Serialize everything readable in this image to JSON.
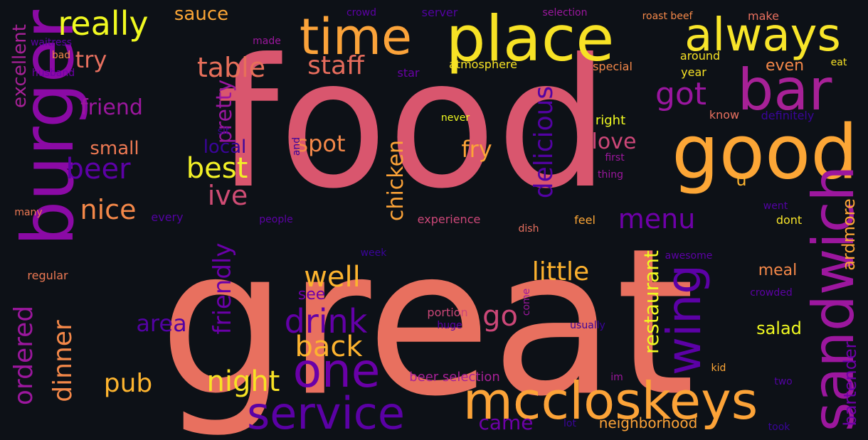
{
  "words": [
    {
      "text": "food",
      "color": "#d9566e",
      "rotate": false
    },
    {
      "text": "great",
      "color": "#e8705f",
      "rotate": false
    },
    {
      "text": "place",
      "color": "#f7e225",
      "rotate": false
    },
    {
      "text": "time",
      "color": "#fba33a",
      "rotate": false
    },
    {
      "text": "always",
      "color": "#f8e52a",
      "rotate": false
    },
    {
      "text": "bar",
      "color": "#a72197",
      "rotate": false
    },
    {
      "text": "good",
      "color": "#fca636",
      "rotate": false
    },
    {
      "text": "burger",
      "color": "#8b0aa5",
      "rotate": true
    },
    {
      "text": "sandwich",
      "color": "#9c179e",
      "rotate": true
    },
    {
      "text": "mccloskeys",
      "color": "#fca338",
      "rotate": false
    },
    {
      "text": "service",
      "color": "#5b01a5",
      "rotate": false
    },
    {
      "text": "one",
      "color": "#6a00a8",
      "rotate": false
    },
    {
      "text": "really",
      "color": "#f0f921",
      "rotate": false
    },
    {
      "text": "table",
      "color": "#e76f5a",
      "rotate": false
    },
    {
      "text": "staff",
      "color": "#e66c5c",
      "rotate": false
    },
    {
      "text": "wing",
      "color": "#5c01a6",
      "rotate": true
    },
    {
      "text": "got",
      "color": "#9a169f",
      "rotate": false
    },
    {
      "text": "beer",
      "color": "#5d01a6",
      "rotate": false
    },
    {
      "text": "best",
      "color": "#f2f027",
      "rotate": false
    },
    {
      "text": "ive",
      "color": "#cf4c74",
      "rotate": false
    },
    {
      "text": "nice",
      "color": "#f48849",
      "rotate": false
    },
    {
      "text": "delicious",
      "color": "#5302a3",
      "rotate": true
    },
    {
      "text": "menu",
      "color": "#6e00a8",
      "rotate": false
    },
    {
      "text": "well",
      "color": "#fdb42f",
      "rotate": false
    },
    {
      "text": "little",
      "color": "#fcb12e",
      "rotate": false
    },
    {
      "text": "drink",
      "color": "#6300a7",
      "rotate": false
    },
    {
      "text": "go",
      "color": "#cc4778",
      "rotate": false
    },
    {
      "text": "back",
      "color": "#fdb32f",
      "rotate": false
    },
    {
      "text": "night",
      "color": "#f7e225",
      "rotate": false
    },
    {
      "text": "pub",
      "color": "#fdb42f",
      "rotate": false
    },
    {
      "text": "dinner",
      "color": "#f48849",
      "rotate": true
    },
    {
      "text": "ordered",
      "color": "#9c179e",
      "rotate": true
    },
    {
      "text": "friendly",
      "color": "#6a00a8",
      "rotate": true
    },
    {
      "text": "chicken",
      "color": "#fca338",
      "rotate": true
    },
    {
      "text": "restaurant",
      "color": "#f0f921",
      "rotate": true
    },
    {
      "text": "bartender",
      "color": "#6e00a8",
      "rotate": true
    },
    {
      "text": "ardmore",
      "color": "#fca636",
      "rotate": true
    },
    {
      "text": "love",
      "color": "#cc4778",
      "rotate": false
    },
    {
      "text": "fry",
      "color": "#fca338",
      "rotate": false
    },
    {
      "text": "pretty",
      "color": "#9a169f",
      "rotate": true
    },
    {
      "text": "spot",
      "color": "#f48849",
      "rotate": false
    },
    {
      "text": "friend",
      "color": "#9c179e",
      "rotate": false
    },
    {
      "text": "area",
      "color": "#5302a3",
      "rotate": false
    },
    {
      "text": "excellent",
      "color": "#a72197",
      "rotate": true
    },
    {
      "text": "small",
      "color": "#ed7953",
      "rotate": false
    },
    {
      "text": "local",
      "color": "#3a049a",
      "rotate": false
    },
    {
      "text": "try",
      "color": "#e8705f",
      "rotate": false
    },
    {
      "text": "sauce",
      "color": "#fca636",
      "rotate": false
    },
    {
      "text": "came",
      "color": "#6e00a8",
      "rotate": false
    },
    {
      "text": "meal",
      "color": "#f48849",
      "rotate": false
    },
    {
      "text": "salad",
      "color": "#f0f921",
      "rotate": false
    },
    {
      "text": "see",
      "color": "#6e00a8",
      "rotate": false
    },
    {
      "text": "even",
      "color": "#f48849",
      "rotate": false
    },
    {
      "text": "u",
      "color": "#fdb42f",
      "rotate": false
    },
    {
      "text": "neighborhood",
      "color": "#fca338",
      "rotate": false
    },
    {
      "text": "beer selection",
      "color": "#a72197",
      "rotate": false
    },
    {
      "text": "experience",
      "color": "#cc4778",
      "rotate": false
    },
    {
      "text": "people",
      "color": "#5d01a6",
      "rotate": false
    },
    {
      "text": "every",
      "color": "#5302a3",
      "rotate": false
    },
    {
      "text": "many",
      "color": "#ed7953",
      "rotate": false
    },
    {
      "text": "regular",
      "color": "#ed7953",
      "rotate": false
    },
    {
      "text": "portion",
      "color": "#cc4778",
      "rotate": false
    },
    {
      "text": "huge",
      "color": "#5d01a6",
      "rotate": false
    },
    {
      "text": "come",
      "color": "#9c179e",
      "rotate": true
    },
    {
      "text": "usually",
      "color": "#3a049a",
      "rotate": false
    },
    {
      "text": "week",
      "color": "#3a049a",
      "rotate": false
    },
    {
      "text": "dish",
      "color": "#e8705f",
      "rotate": false
    },
    {
      "text": "feel",
      "color": "#fca636",
      "rotate": false
    },
    {
      "text": "right",
      "color": "#f0f921",
      "rotate": false
    },
    {
      "text": "first",
      "color": "#9c179e",
      "rotate": false
    },
    {
      "text": "thing",
      "color": "#9c179e",
      "rotate": false
    },
    {
      "text": "never",
      "color": "#f0f921",
      "rotate": false
    },
    {
      "text": "know",
      "color": "#e8705f",
      "rotate": false
    },
    {
      "text": "definitely",
      "color": "#3a049a",
      "rotate": false
    },
    {
      "text": "went",
      "color": "#5302a3",
      "rotate": false
    },
    {
      "text": "dont",
      "color": "#f8e52a",
      "rotate": false
    },
    {
      "text": "awesome",
      "color": "#5d01a6",
      "rotate": false
    },
    {
      "text": "crowded",
      "color": "#5d01a6",
      "rotate": false
    },
    {
      "text": "kid",
      "color": "#fca636",
      "rotate": false
    },
    {
      "text": "im",
      "color": "#9c179e",
      "rotate": false
    },
    {
      "text": "two",
      "color": "#5302a3",
      "rotate": false
    },
    {
      "text": "lot",
      "color": "#3a049a",
      "rotate": false
    },
    {
      "text": "took",
      "color": "#3a049a",
      "rotate": false
    },
    {
      "text": "sit",
      "color": "#3a049a",
      "rotate": false
    },
    {
      "text": "and",
      "color": "#3a049a",
      "rotate": true
    },
    {
      "text": "waitress",
      "color": "#5d01a6",
      "rotate": false
    },
    {
      "text": "bad",
      "color": "#f48849",
      "rotate": false
    },
    {
      "text": "husband",
      "color": "#6e00a8",
      "rotate": false
    },
    {
      "text": "made",
      "color": "#9c179e",
      "rotate": false
    },
    {
      "text": "crowd",
      "color": "#5d01a6",
      "rotate": false
    },
    {
      "text": "server",
      "color": "#5302a3",
      "rotate": false
    },
    {
      "text": "selection",
      "color": "#9c179e",
      "rotate": false
    },
    {
      "text": "roast beef",
      "color": "#f48849",
      "rotate": false
    },
    {
      "text": "make",
      "color": "#e8705f",
      "rotate": false
    },
    {
      "text": "star",
      "color": "#6a00a8",
      "rotate": false
    },
    {
      "text": "atmosphere",
      "color": "#f7e225",
      "rotate": false
    },
    {
      "text": "special",
      "color": "#f48849",
      "rotate": false
    },
    {
      "text": "around",
      "color": "#f7e225",
      "rotate": false
    },
    {
      "text": "year",
      "color": "#f7e225",
      "rotate": false
    },
    {
      "text": "eat",
      "color": "#f7e225",
      "rotate": false
    }
  ]
}
